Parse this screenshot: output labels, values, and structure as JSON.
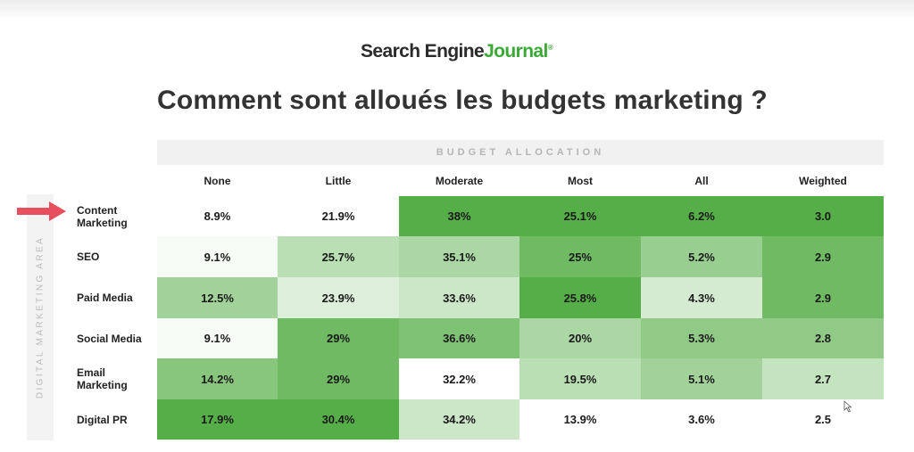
{
  "brand": {
    "name_part1": "Search Engine",
    "name_part2": "Journal",
    "registered": "®"
  },
  "slide_title": "Comment sont alloués les budgets marketing ?",
  "colors": {
    "brand_green": "#3aa935",
    "arrow": "#e84f5e",
    "heat_low": "#ffffff",
    "heat_high": "#55ae47"
  },
  "icons": {
    "pointer_arrow": "right-arrow-icon",
    "cursor": "mouse-cursor-icon"
  },
  "chart_data": {
    "type": "heatmap",
    "title": "BUDGET ALLOCATION",
    "ylabel": "DIGITAL MARKETING AREA",
    "columns": [
      "None",
      "Little",
      "Moderate",
      "Most",
      "All",
      "Weighted"
    ],
    "rows": [
      {
        "label": "Content Marketing",
        "highlighted": true,
        "values": [
          "8.9%",
          "21.9%",
          "38%",
          "25.1%",
          "6.2%",
          "3.0"
        ],
        "levels": [
          0.0,
          0.0,
          1.0,
          1.0,
          1.0,
          1.0
        ]
      },
      {
        "label": "SEO",
        "highlighted": false,
        "values": [
          "9.1%",
          "25.7%",
          "35.1%",
          "25%",
          "5.2%",
          "2.9"
        ],
        "levels": [
          0.05,
          0.4,
          0.5,
          0.85,
          0.6,
          0.85
        ]
      },
      {
        "label": "Paid Media",
        "highlighted": false,
        "values": [
          "12.5%",
          "23.9%",
          "33.6%",
          "25.8%",
          "4.3%",
          "2.9"
        ],
        "levels": [
          0.55,
          0.2,
          0.3,
          1.0,
          0.25,
          0.85
        ]
      },
      {
        "label": "Social Media",
        "highlighted": false,
        "values": [
          "9.1%",
          "29%",
          "36.6%",
          "20%",
          "5.3%",
          "2.8"
        ],
        "levels": [
          0.05,
          0.85,
          0.75,
          0.5,
          0.65,
          0.65
        ]
      },
      {
        "label": "Email Marketing",
        "highlighted": false,
        "values": [
          "14.2%",
          "29%",
          "32.2%",
          "19.5%",
          "5.1%",
          "2.7"
        ],
        "levels": [
          0.7,
          0.85,
          0.0,
          0.4,
          0.55,
          0.35
        ]
      },
      {
        "label": "Digital PR",
        "highlighted": false,
        "values": [
          "17.9%",
          "30.4%",
          "34.2%",
          "13.9%",
          "3.6%",
          "2.5"
        ],
        "levels": [
          1.0,
          1.0,
          0.3,
          0.0,
          0.0,
          0.0
        ]
      }
    ]
  }
}
